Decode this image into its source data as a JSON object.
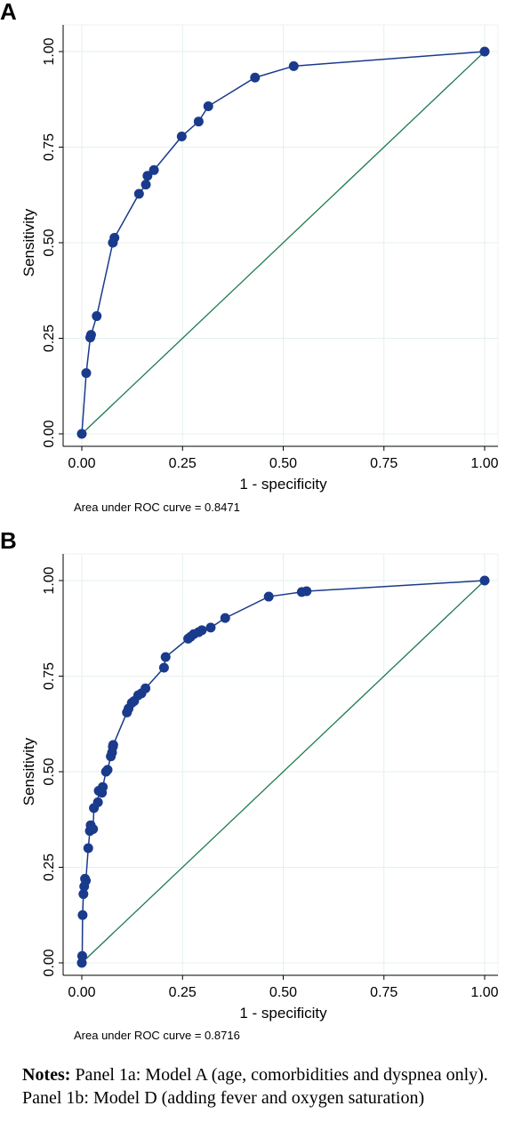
{
  "chart_data": [
    {
      "type": "line",
      "panel_label": "A",
      "xlabel": "1 - specificity",
      "ylabel": "Sensitivity",
      "xlim": [
        0,
        1
      ],
      "ylim": [
        0,
        1
      ],
      "x_ticks": [
        "0.00",
        "0.25",
        "0.50",
        "0.75",
        "1.00"
      ],
      "y_ticks": [
        "0.00",
        "0.25",
        "0.50",
        "0.75",
        "1.00"
      ],
      "grid": true,
      "auc_text": "Area under ROC curve = 0.8471",
      "colors": {
        "roc": "#1a3a8c",
        "reference": "#1e7a4e",
        "grid": "#e3f1ee"
      },
      "series": [
        {
          "x": [
            0.0,
            0.011,
            0.021,
            0.023,
            0.037,
            0.077,
            0.081,
            0.142,
            0.159,
            0.163,
            0.179,
            0.248,
            0.29,
            0.314,
            0.43,
            0.526,
            1.0
          ],
          "y": [
            0.0,
            0.159,
            0.252,
            0.259,
            0.308,
            0.5,
            0.513,
            0.628,
            0.652,
            0.675,
            0.69,
            0.778,
            0.817,
            0.857,
            0.932,
            0.962,
            1.0
          ]
        },
        {
          "x": [
            0,
            1
          ],
          "y": [
            0,
            1
          ]
        }
      ]
    },
    {
      "type": "line",
      "panel_label": "B",
      "xlabel": "1 - specificity",
      "ylabel": "Sensitivity",
      "xlim": [
        0,
        1
      ],
      "ylim": [
        0,
        1
      ],
      "x_ticks": [
        "0.00",
        "0.25",
        "0.50",
        "0.75",
        "1.00"
      ],
      "y_ticks": [
        "0.00",
        "0.25",
        "0.50",
        "0.75",
        "1.00"
      ],
      "grid": true,
      "auc_text": "Area under ROC curve = 0.8716",
      "colors": {
        "roc": "#1a3a8c",
        "reference": "#1e7a4e",
        "grid": "#e3f1ee"
      },
      "series": [
        {
          "x": [
            0.0,
            0.001,
            0.002,
            0.004,
            0.006,
            0.008,
            0.01,
            0.016,
            0.02,
            0.022,
            0.028,
            0.03,
            0.04,
            0.042,
            0.05,
            0.052,
            0.06,
            0.064,
            0.072,
            0.075,
            0.077,
            0.078,
            0.112,
            0.116,
            0.124,
            0.13,
            0.14,
            0.148,
            0.158,
            0.204,
            0.208,
            0.264,
            0.27,
            0.278,
            0.29,
            0.298,
            0.32,
            0.356,
            0.464,
            0.546,
            0.558,
            1.0
          ],
          "y": [
            0.0,
            0.018,
            0.125,
            0.18,
            0.2,
            0.22,
            0.215,
            0.3,
            0.345,
            0.36,
            0.35,
            0.405,
            0.42,
            0.45,
            0.445,
            0.46,
            0.5,
            0.505,
            0.54,
            0.55,
            0.565,
            0.57,
            0.655,
            0.665,
            0.68,
            0.685,
            0.7,
            0.705,
            0.718,
            0.772,
            0.8,
            0.848,
            0.853,
            0.86,
            0.865,
            0.87,
            0.877,
            0.902,
            0.958,
            0.97,
            0.972,
            1.0
          ]
        },
        {
          "x": [
            0,
            1
          ],
          "y": [
            0,
            1
          ]
        }
      ]
    }
  ],
  "notes": {
    "label": "Notes:",
    "text": " Panel 1a: Model A (age, comorbidities and dyspnea only). Panel 1b: Model D (adding fever and oxygen saturation)"
  }
}
